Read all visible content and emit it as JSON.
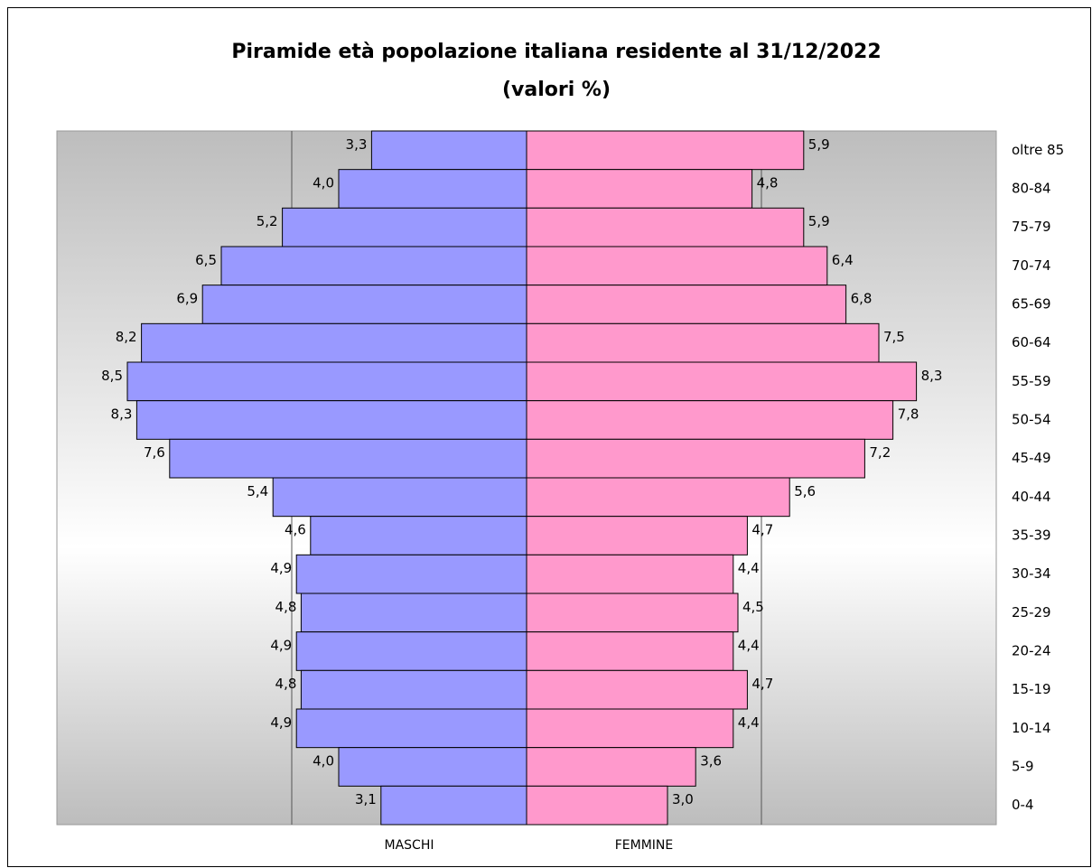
{
  "chart_data": {
    "type": "pyramid",
    "title": "Piramide età popolazione italiana residente al 31/12/2022",
    "subtitle": "(valori %)",
    "categories": [
      "oltre 85",
      "80-84",
      "75-79",
      "70-74",
      "65-69",
      "60-64",
      "55-59",
      "50-54",
      "45-49",
      "40-44",
      "35-39",
      "30-34",
      "25-29",
      "20-24",
      "15-19",
      "10-14",
      "5-9",
      "0-4"
    ],
    "series": [
      {
        "name": "MASCHI",
        "color": "#9999ff",
        "values": [
          3.3,
          4.0,
          5.2,
          6.5,
          6.9,
          8.2,
          8.5,
          8.3,
          7.6,
          5.4,
          4.6,
          4.9,
          4.8,
          4.9,
          4.8,
          4.9,
          4.0,
          3.1
        ],
        "value_labels": [
          "3,3",
          "4,0",
          "5,2",
          "6,5",
          "6,9",
          "8,2",
          "8,5",
          "8,3",
          "7,6",
          "5,4",
          "4,6",
          "4,9",
          "4,8",
          "4,9",
          "4,8",
          "4,9",
          "4,0",
          "3,1"
        ]
      },
      {
        "name": "FEMMINE",
        "color": "#ff99cc",
        "values": [
          5.9,
          4.8,
          5.9,
          6.4,
          6.8,
          7.5,
          8.3,
          7.8,
          7.2,
          5.6,
          4.7,
          4.4,
          4.5,
          4.4,
          4.7,
          4.4,
          3.6,
          3.0
        ],
        "value_labels": [
          "5,9",
          "4,8",
          "5,9",
          "6,4",
          "6,8",
          "7,5",
          "8,3",
          "7,8",
          "7,2",
          "5,6",
          "4,7",
          "4,4",
          "4,5",
          "4,4",
          "4,7",
          "4,4",
          "3,6",
          "3,0"
        ]
      }
    ],
    "xlim": [
      0,
      10
    ],
    "xticks": [
      5
    ],
    "grid": true
  }
}
